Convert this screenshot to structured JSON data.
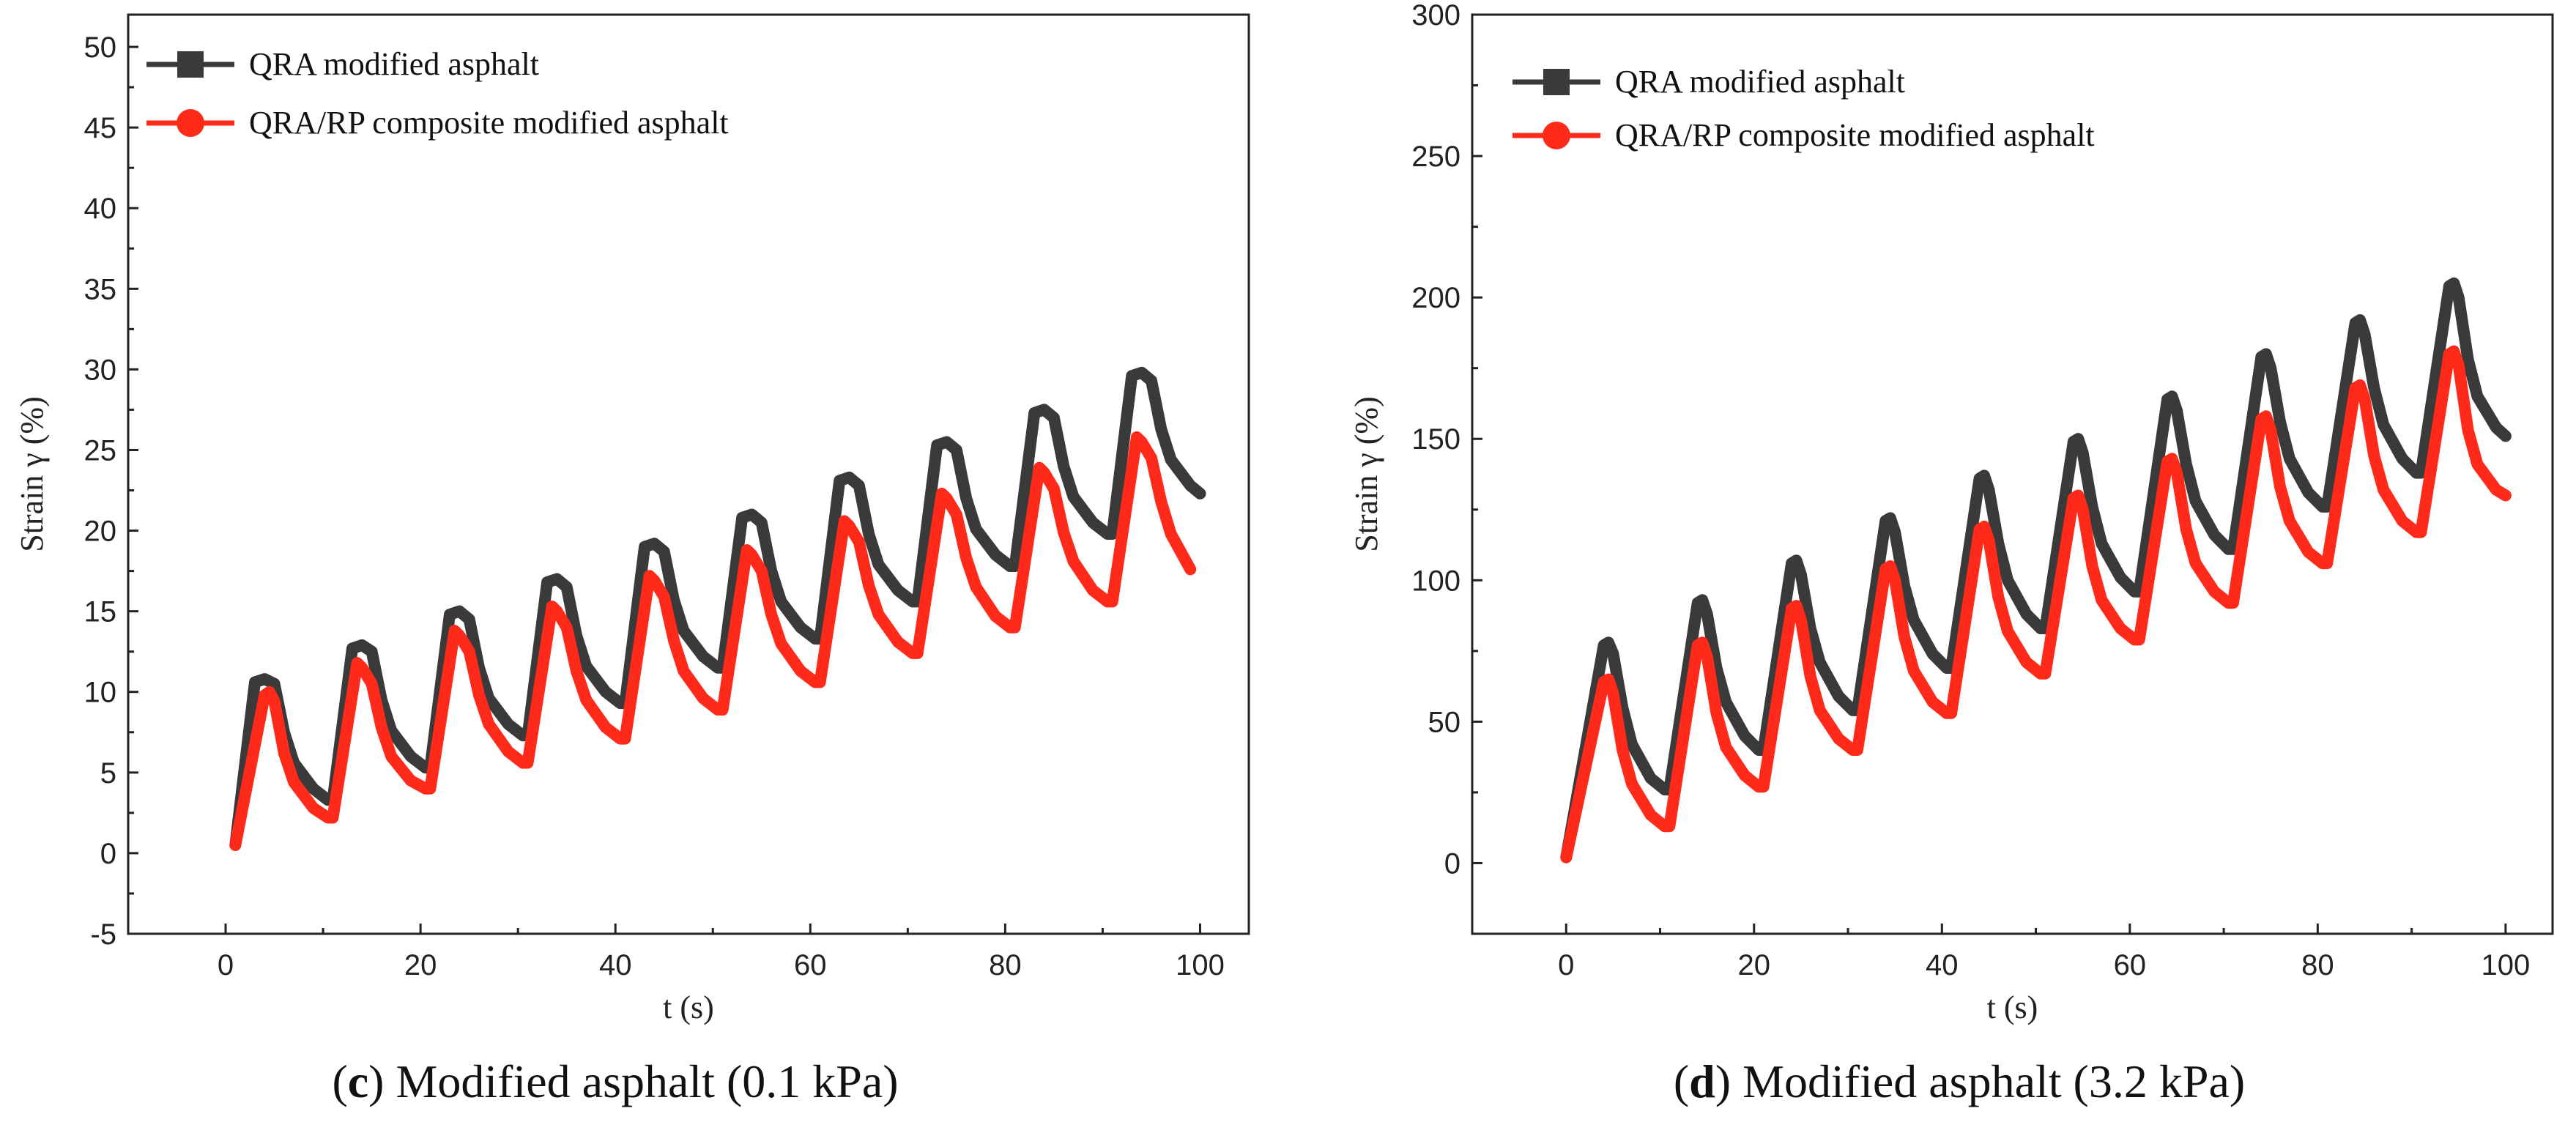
{
  "colors": {
    "series1": "#3a3a3a",
    "series2": "#ff2a1a",
    "axis": "#222222"
  },
  "chart_data": [
    {
      "type": "line",
      "panel": "c",
      "caption_letter": "c",
      "caption_text": " Modified asphalt (0.1 kPa)",
      "title": "",
      "xlabel": "t (s)",
      "ylabel": "Strain γ  (%)",
      "xlim": [
        -10,
        105
      ],
      "ylim": [
        -5,
        52
      ],
      "xticks": [
        0,
        20,
        40,
        60,
        80,
        100
      ],
      "xtick_labels": [
        "0",
        "20",
        "40",
        "60",
        "80",
        "100"
      ],
      "yticks": [
        -5,
        0,
        5,
        10,
        15,
        20,
        25,
        30,
        35,
        40,
        45,
        50
      ],
      "ytick_labels": [
        "-5",
        "0",
        "5",
        "10",
        "15",
        "20",
        "25",
        "30",
        "35",
        "40",
        "45",
        "50"
      ],
      "legend_position": "top-left",
      "series": [
        {
          "name": "QRA modified asphalt",
          "color": "#3a3a3a",
          "x": [
            1,
            3,
            4,
            5,
            6,
            7,
            9,
            10.5,
            11,
            13,
            14,
            15,
            16,
            17,
            19,
            20.5,
            21,
            23,
            24,
            25,
            26,
            27,
            29,
            30.5,
            31,
            33,
            34,
            35,
            36,
            37,
            39,
            40.5,
            41,
            43,
            44,
            45,
            46,
            47,
            49,
            50.5,
            51,
            53,
            54,
            55,
            56,
            57,
            59,
            60.5,
            61,
            63,
            64,
            65,
            66,
            67,
            69,
            70.5,
            71,
            73,
            74,
            75,
            76,
            77,
            79,
            80.5,
            81,
            83,
            84,
            85,
            86,
            87,
            89,
            90.5,
            91,
            93,
            94,
            95,
            96,
            97,
            99,
            100
          ],
          "y": [
            0.5,
            10.6,
            10.8,
            10.5,
            7.5,
            5.6,
            4.0,
            3.3,
            3.3,
            12.7,
            12.9,
            12.5,
            9.5,
            7.6,
            6.0,
            5.3,
            5.3,
            14.8,
            15.0,
            14.5,
            11.5,
            9.6,
            8.0,
            7.3,
            7.3,
            16.8,
            17.0,
            16.5,
            13.5,
            11.6,
            10.0,
            9.3,
            9.3,
            19.0,
            19.2,
            18.7,
            15.7,
            13.8,
            12.2,
            11.5,
            11.5,
            20.8,
            21.0,
            20.5,
            17.5,
            15.6,
            14.0,
            13.3,
            13.3,
            23.1,
            23.3,
            22.8,
            19.8,
            17.9,
            16.3,
            15.6,
            15.6,
            25.3,
            25.5,
            25.0,
            22.0,
            20.1,
            18.5,
            17.8,
            17.8,
            27.3,
            27.5,
            27.0,
            24.0,
            22.1,
            20.5,
            19.8,
            19.8,
            29.6,
            29.8,
            29.3,
            26.3,
            24.4,
            22.8,
            22.3
          ]
        },
        {
          "name": "QRA/RP composite modified asphalt",
          "color": "#ff2a1a",
          "x": [
            1,
            4,
            4.5,
            5,
            6,
            7,
            9,
            10.5,
            11,
            13.5,
            14,
            15,
            16,
            17,
            19,
            20.5,
            21,
            23.5,
            24,
            25,
            26,
            27,
            29,
            30.5,
            31,
            33.5,
            34,
            35,
            36,
            37,
            39,
            40.5,
            41,
            43.5,
            44,
            45,
            46,
            47,
            49,
            50.5,
            51,
            53.5,
            54,
            55,
            56,
            57,
            59,
            60.5,
            61,
            63.5,
            64,
            65,
            66,
            67,
            69,
            70.5,
            71,
            73.5,
            74,
            75,
            76,
            77,
            79,
            80.5,
            81,
            83.5,
            84,
            85,
            86,
            87,
            89,
            90.5,
            91,
            93.5,
            94,
            95,
            96,
            97,
            99
          ],
          "y": [
            0.5,
            9.8,
            10.0,
            9.4,
            6.2,
            4.4,
            2.8,
            2.2,
            2.2,
            11.8,
            11.5,
            10.5,
            7.8,
            6.0,
            4.5,
            4.0,
            4.0,
            13.8,
            13.5,
            12.5,
            9.8,
            8.0,
            6.3,
            5.6,
            5.6,
            15.3,
            15.0,
            14.0,
            11.3,
            9.5,
            7.8,
            7.1,
            7.1,
            17.2,
            16.9,
            15.9,
            13.2,
            11.3,
            9.6,
            8.9,
            8.9,
            18.8,
            18.5,
            17.5,
            14.8,
            13.0,
            11.3,
            10.6,
            10.6,
            20.6,
            20.3,
            19.3,
            16.6,
            14.8,
            13.1,
            12.4,
            12.4,
            22.3,
            22.0,
            21.0,
            18.3,
            16.5,
            14.7,
            14.0,
            14.0,
            23.9,
            23.6,
            22.6,
            19.9,
            18.1,
            16.3,
            15.6,
            15.6,
            25.8,
            25.5,
            24.5,
            21.8,
            19.8,
            17.6
          ]
        }
      ]
    },
    {
      "type": "line",
      "panel": "d",
      "caption_letter": "d",
      "caption_text": " Modified asphalt (3.2 kPa)",
      "title": "",
      "xlabel": "t (s)",
      "ylabel": "Strain γ  (%)",
      "xlim": [
        -10,
        105
      ],
      "ylim": [
        -25,
        300
      ],
      "xticks": [
        0,
        20,
        40,
        60,
        80,
        100
      ],
      "xtick_labels": [
        "0",
        "20",
        "40",
        "60",
        "80",
        "100"
      ],
      "yticks": [
        0,
        50,
        100,
        150,
        200,
        250,
        300
      ],
      "ytick_labels": [
        "0",
        "50",
        "100",
        "150",
        "200",
        "250",
        "300"
      ],
      "legend_position": "top-left",
      "series": [
        {
          "name": "QRA modified asphalt",
          "color": "#3a3a3a",
          "x": [
            0,
            4,
            4.5,
            5,
            6,
            7,
            9,
            10.5,
            11,
            14,
            14.5,
            15,
            16,
            17,
            19,
            20.5,
            21,
            24,
            24.5,
            25,
            26,
            27,
            29,
            30.5,
            31,
            34,
            34.5,
            35,
            36,
            37,
            39,
            40.5,
            41,
            44,
            44.5,
            45,
            46,
            47,
            49,
            50.5,
            51,
            54,
            54.5,
            55,
            56,
            57,
            59,
            60.5,
            61,
            64,
            64.5,
            65,
            66,
            67,
            69,
            70.5,
            71,
            74,
            74.5,
            75,
            76,
            77,
            79,
            80.5,
            81,
            84,
            84.5,
            85,
            86,
            87,
            89,
            90.5,
            91,
            94,
            94.5,
            95,
            96,
            97,
            99,
            100
          ],
          "y": [
            2,
            77,
            78,
            74,
            55,
            42,
            30,
            26,
            26,
            92,
            93,
            88,
            69,
            57,
            45,
            40,
            40,
            106,
            107,
            102,
            83,
            71,
            59,
            54,
            54,
            121,
            122,
            117,
            98,
            86,
            74,
            69,
            69,
            136,
            137,
            132,
            113,
            100,
            88,
            83,
            83,
            149,
            150,
            145,
            126,
            113,
            101,
            96,
            96,
            164,
            165,
            160,
            141,
            128,
            116,
            111,
            111,
            179,
            180,
            175,
            156,
            143,
            131,
            126,
            126,
            191,
            192,
            187,
            168,
            155,
            143,
            138,
            138,
            204,
            205,
            200,
            178,
            165,
            154,
            151
          ]
        },
        {
          "name": "QRA/RP composite modified asphalt",
          "color": "#ff2a1a",
          "x": [
            0,
            4,
            4.5,
            5,
            6,
            7,
            9,
            10.5,
            11,
            14,
            14.5,
            15,
            16,
            17,
            19,
            20.5,
            21,
            24,
            24.5,
            25,
            26,
            27,
            29,
            30.5,
            31,
            34,
            34.5,
            35,
            36,
            37,
            39,
            40.5,
            41,
            44,
            44.5,
            45,
            46,
            47,
            49,
            50.5,
            51,
            54,
            54.5,
            55,
            56,
            57,
            59,
            60.5,
            61,
            64,
            64.5,
            65,
            66,
            67,
            69,
            70.5,
            71,
            74,
            74.5,
            75,
            76,
            77,
            79,
            80.5,
            81,
            84,
            84.5,
            85,
            86,
            87,
            89,
            90.5,
            91,
            94,
            94.5,
            95,
            96,
            97,
            99,
            100
          ],
          "y": [
            2,
            64,
            65,
            60,
            40,
            28,
            17,
            13,
            13,
            77,
            78,
            73,
            53,
            41,
            31,
            27,
            27,
            90,
            91,
            86,
            66,
            54,
            44,
            40,
            40,
            104,
            105,
            100,
            80,
            68,
            57,
            53,
            53,
            118,
            119,
            114,
            94,
            82,
            71,
            67,
            67,
            129,
            130,
            125,
            105,
            93,
            83,
            79,
            79,
            142,
            143,
            138,
            118,
            106,
            96,
            92,
            92,
            157,
            158,
            153,
            133,
            121,
            110,
            106,
            106,
            168,
            169,
            164,
            144,
            132,
            121,
            117,
            117,
            180,
            181,
            176,
            153,
            141,
            132,
            130
          ]
        }
      ]
    }
  ]
}
